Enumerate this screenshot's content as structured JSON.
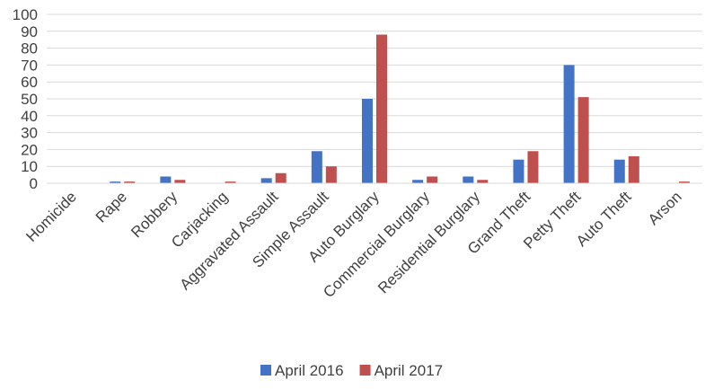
{
  "chart_data": {
    "type": "bar",
    "title": "",
    "xlabel": "",
    "ylabel": "",
    "ylim": [
      0,
      100
    ],
    "yticks": [
      0,
      10,
      20,
      30,
      40,
      50,
      60,
      70,
      80,
      90,
      100
    ],
    "grid": true,
    "legend": "bottom",
    "categories": [
      "Homicide",
      "Rape",
      "Robbery",
      "Carjacking",
      "Aggravated Assault",
      "Simple Assault",
      "Auto Burglary",
      "Commercial Burglary",
      "Residential Burglary",
      "Grand Theft",
      "Petty Theft",
      "Auto Theft",
      "Arson"
    ],
    "series": [
      {
        "name": "April 2016",
        "color": "#4472c4",
        "values": [
          0,
          1,
          4,
          0,
          3,
          19,
          50,
          2,
          4,
          14,
          70,
          14,
          0
        ]
      },
      {
        "name": "April 2017",
        "color": "#c0504d",
        "values": [
          0,
          1,
          2,
          1,
          6,
          10,
          88,
          4,
          2,
          19,
          51,
          16,
          1
        ]
      }
    ]
  }
}
